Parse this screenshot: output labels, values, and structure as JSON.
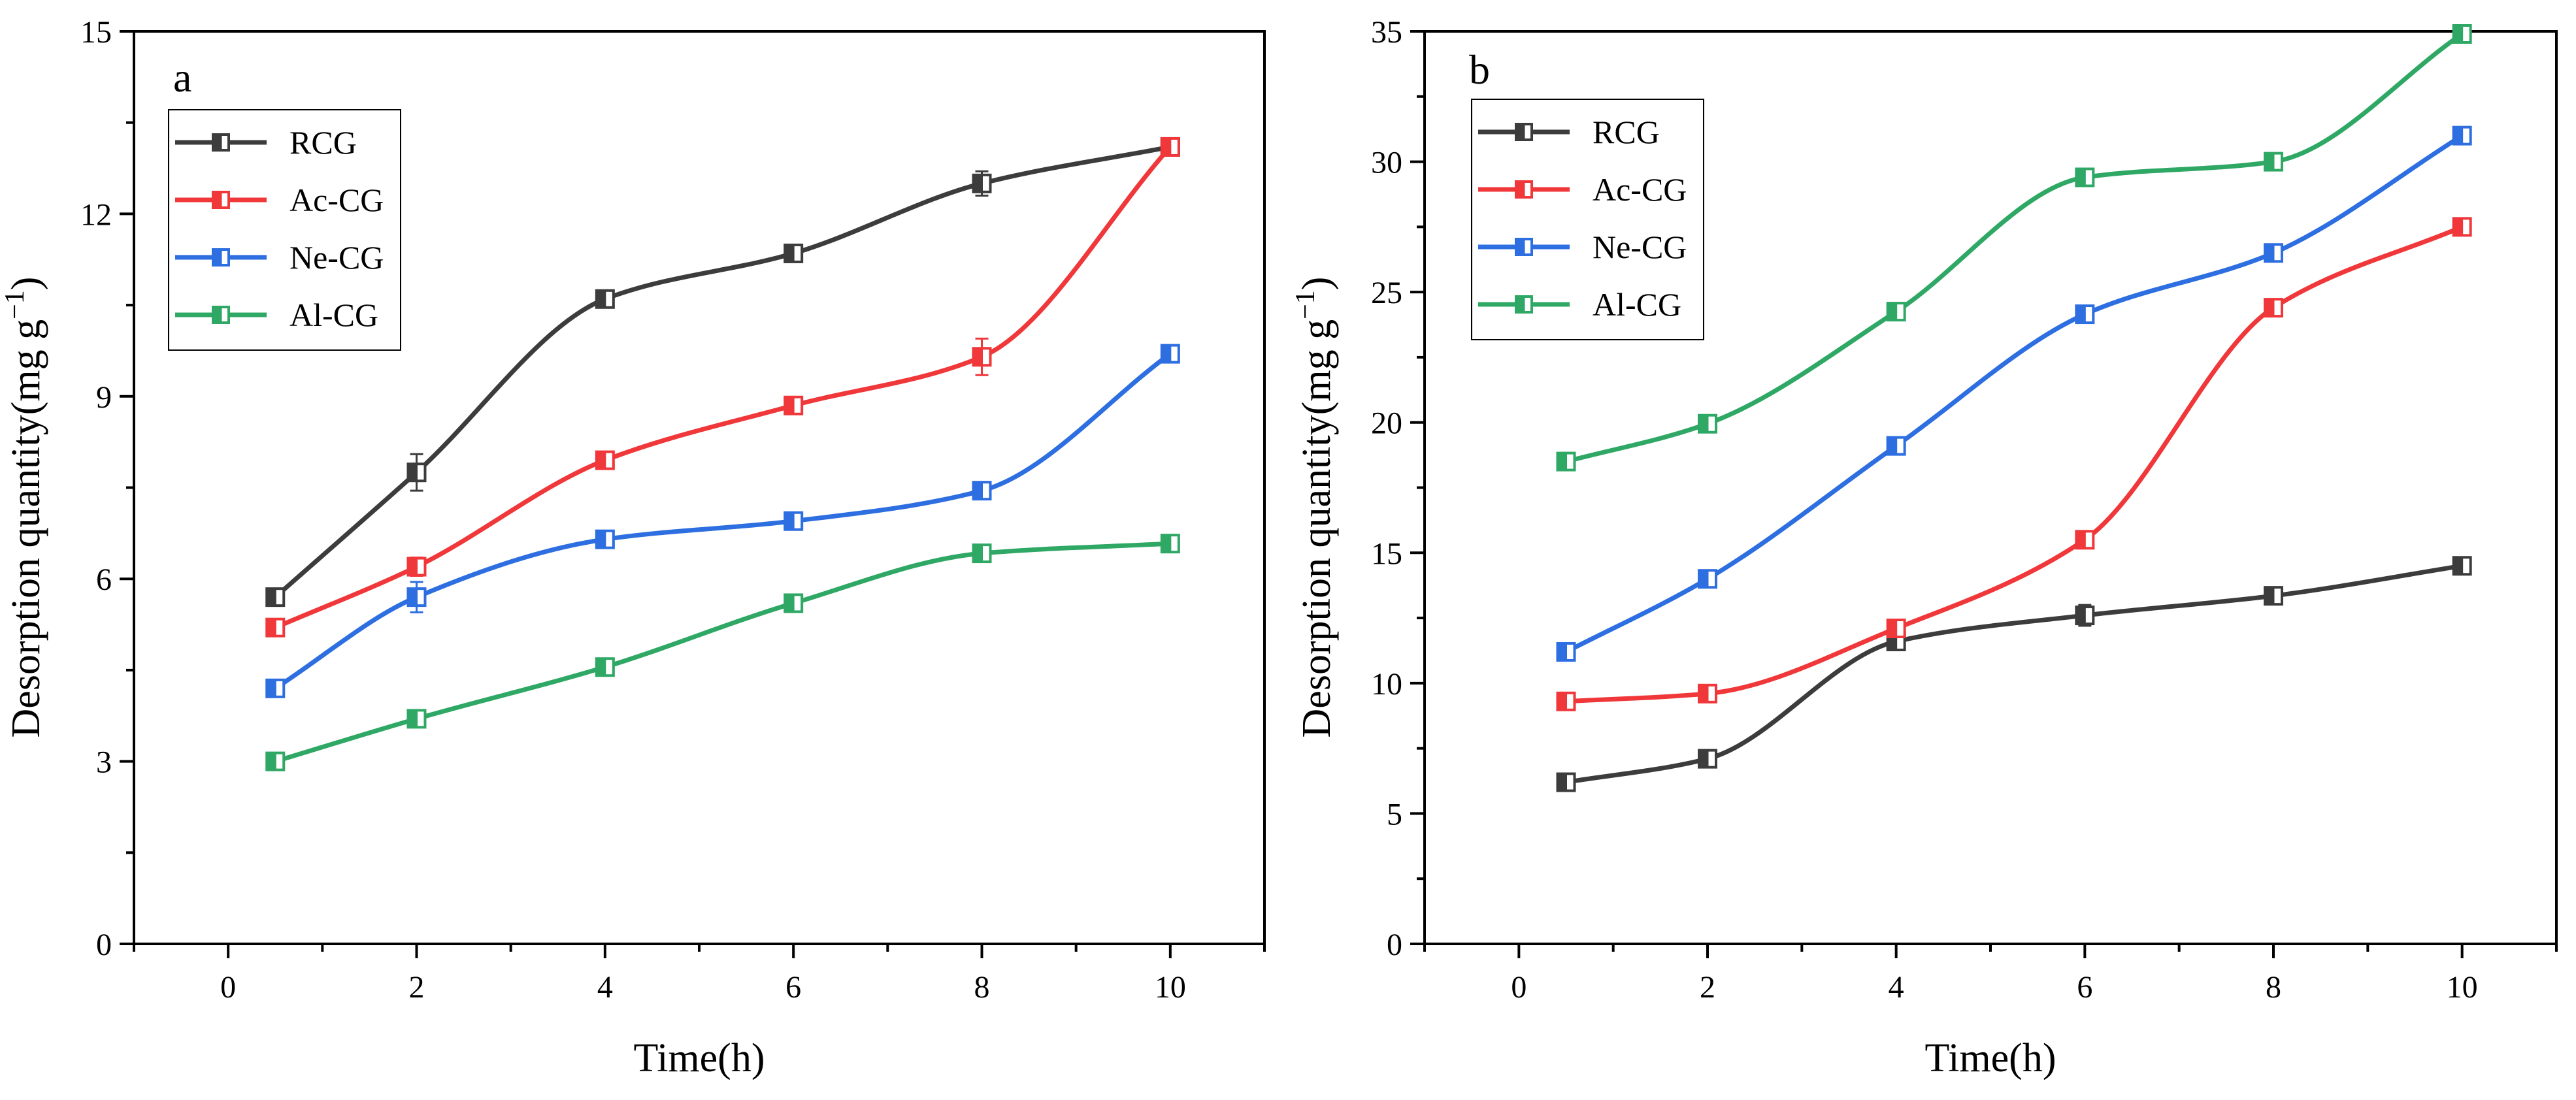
{
  "chart_data": [
    {
      "panel_label": "a",
      "type": "line",
      "xlabel": "Time(h)",
      "ylabel_main": "Desorption quantity(mg g",
      "ylabel_sup": "−1",
      "ylabel_close": ")",
      "xlim": [
        -1,
        11
      ],
      "ylim": [
        0,
        15
      ],
      "xticks": [
        0,
        2,
        4,
        6,
        8,
        10
      ],
      "xtick_labels": [
        "0",
        "2",
        "4",
        "6",
        "8",
        "10"
      ],
      "yticks": [
        0,
        3,
        6,
        9,
        12,
        15
      ],
      "ytick_labels": [
        "0",
        "3",
        "6",
        "9",
        "12",
        "15"
      ],
      "legend_position": "top-left",
      "x": [
        0.5,
        2,
        4,
        6,
        8,
        10
      ],
      "series": [
        {
          "name": "RCG",
          "color": "#3c3c3c",
          "values": [
            5.7,
            7.75,
            10.6,
            11.35,
            12.5,
            13.1
          ],
          "errors": [
            0.1,
            0.3,
            0.1,
            0.1,
            0.2,
            0.1
          ]
        },
        {
          "name": "Ac-CG",
          "color": "#f0373a",
          "values": [
            5.2,
            6.2,
            7.95,
            8.85,
            9.65,
            13.1
          ],
          "errors": [
            0.1,
            0.15,
            0.1,
            0.1,
            0.3,
            0.1
          ]
        },
        {
          "name": "Ne-CG",
          "color": "#2d6ee0",
          "values": [
            4.2,
            5.7,
            6.65,
            6.95,
            7.45,
            9.7
          ],
          "errors": [
            0.1,
            0.25,
            0.1,
            0.1,
            0.1,
            0.1
          ]
        },
        {
          "name": "Al-CG",
          "color": "#2fa865",
          "values": [
            3.0,
            3.7,
            4.55,
            5.6,
            6.42,
            6.58
          ],
          "errors": [
            0.05,
            0.1,
            0.1,
            0.1,
            0.1,
            0.1
          ]
        }
      ]
    },
    {
      "panel_label": "b",
      "type": "line",
      "xlabel": "Time(h)",
      "ylabel_main": "Desorption quantity(mg g",
      "ylabel_sup": "−1",
      "ylabel_close": ")",
      "xlim": [
        -1,
        11
      ],
      "ylim": [
        0,
        35
      ],
      "xticks": [
        0,
        2,
        4,
        6,
        8,
        10
      ],
      "xtick_labels": [
        "0",
        "2",
        "4",
        "6",
        "8",
        "10"
      ],
      "yticks": [
        0,
        5,
        10,
        15,
        20,
        25,
        30,
        35
      ],
      "ytick_labels": [
        "0",
        "5",
        "10",
        "15",
        "20",
        "25",
        "30",
        "35"
      ],
      "legend_position": "top-left",
      "x": [
        0.5,
        2,
        4,
        6,
        8,
        10
      ],
      "series": [
        {
          "name": "RCG",
          "color": "#3c3c3c",
          "values": [
            6.2,
            7.1,
            11.6,
            12.6,
            13.35,
            14.5
          ],
          "errors": [
            0.15,
            0.2,
            0.3,
            0.4,
            0.2,
            0.15
          ]
        },
        {
          "name": "Ac-CG",
          "color": "#f0373a",
          "values": [
            9.3,
            9.6,
            12.1,
            15.5,
            24.4,
            27.5
          ],
          "errors": [
            0.15,
            0.2,
            0.2,
            0.2,
            0.2,
            0.2
          ]
        },
        {
          "name": "Ne-CG",
          "color": "#2d6ee0",
          "values": [
            11.2,
            14.0,
            19.1,
            24.15,
            26.5,
            31.0
          ],
          "errors": [
            0.15,
            0.2,
            0.2,
            0.3,
            0.2,
            0.2
          ]
        },
        {
          "name": "Al-CG",
          "color": "#2fa865",
          "values": [
            18.5,
            19.95,
            24.25,
            29.4,
            30.0,
            34.9
          ],
          "errors": [
            0.15,
            0.2,
            0.2,
            0.2,
            0.2,
            0.2
          ]
        }
      ]
    }
  ]
}
